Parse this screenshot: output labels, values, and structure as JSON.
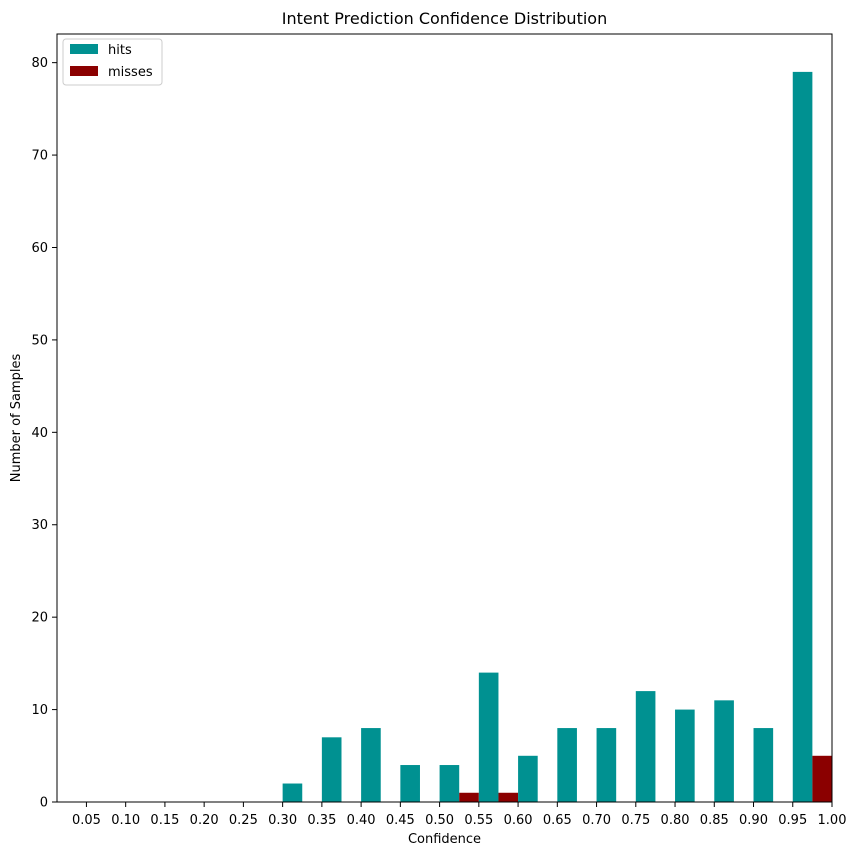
{
  "chart_data": {
    "type": "bar",
    "title": "Intent Prediction Confidence Distribution",
    "xlabel": "Confidence",
    "ylabel": "Number of Samples",
    "x_ticks": [
      "0.05",
      "0.10",
      "0.15",
      "0.20",
      "0.25",
      "0.30",
      "0.35",
      "0.40",
      "0.45",
      "0.50",
      "0.55",
      "0.60",
      "0.65",
      "0.70",
      "0.75",
      "0.80",
      "0.85",
      "0.90",
      "0.95",
      "1.00"
    ],
    "y_ticks": [
      0,
      10,
      20,
      30,
      40,
      50,
      60,
      70,
      80
    ],
    "ylim": [
      0,
      83.1
    ],
    "grid": false,
    "legend_position": "top-left",
    "bins": [
      {
        "left": 0.05,
        "right": 0.1
      },
      {
        "left": 0.1,
        "right": 0.15
      },
      {
        "left": 0.15,
        "right": 0.2
      },
      {
        "left": 0.2,
        "right": 0.25
      },
      {
        "left": 0.25,
        "right": 0.3
      },
      {
        "left": 0.3,
        "right": 0.35
      },
      {
        "left": 0.35,
        "right": 0.4
      },
      {
        "left": 0.4,
        "right": 0.45
      },
      {
        "left": 0.45,
        "right": 0.5
      },
      {
        "left": 0.5,
        "right": 0.55
      },
      {
        "left": 0.55,
        "right": 0.6
      },
      {
        "left": 0.6,
        "right": 0.65
      },
      {
        "left": 0.65,
        "right": 0.7
      },
      {
        "left": 0.7,
        "right": 0.75
      },
      {
        "left": 0.75,
        "right": 0.8
      },
      {
        "left": 0.8,
        "right": 0.85
      },
      {
        "left": 0.85,
        "right": 0.9
      },
      {
        "left": 0.9,
        "right": 0.95
      },
      {
        "left": 0.95,
        "right": 1.0
      }
    ],
    "series": [
      {
        "name": "hits",
        "color": "#009191",
        "values": [
          0,
          0,
          0,
          0,
          0,
          2,
          7,
          8,
          4,
          4,
          14,
          5,
          8,
          8,
          12,
          10,
          11,
          8,
          79
        ]
      },
      {
        "name": "misses",
        "color": "#8b0000",
        "values": [
          0,
          0,
          0,
          0,
          0,
          0,
          0,
          0,
          0,
          1,
          1,
          0,
          0,
          0,
          0,
          0,
          0,
          0,
          5
        ]
      }
    ]
  }
}
